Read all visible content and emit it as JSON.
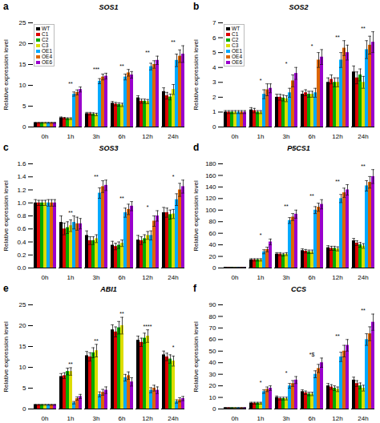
{
  "chart_data": [
    {
      "type": "bar",
      "title": "SOS1",
      "ylabel": "Relative expression level",
      "categories": [
        "0h",
        "1h",
        "3h",
        "6h",
        "12h",
        "24h"
      ],
      "ylim": [
        0,
        25
      ],
      "yticks": [
        0,
        5,
        10,
        15,
        20,
        25
      ],
      "series": [
        {
          "name": "WT",
          "color": "#000000",
          "values": [
            1.0,
            2.2,
            3.2,
            5.7,
            7.0,
            8.5
          ],
          "errors": [
            0.1,
            0.2,
            0.3,
            0.4,
            0.5,
            0.9
          ]
        },
        {
          "name": "C1",
          "color": "#dd0000",
          "values": [
            1.0,
            2.1,
            3.2,
            5.5,
            6.2,
            7.5
          ],
          "errors": [
            0.1,
            0.2,
            0.3,
            0.4,
            0.5,
            0.8
          ]
        },
        {
          "name": "C2",
          "color": "#00aa00",
          "values": [
            1.0,
            2.0,
            3.1,
            5.4,
            6.2,
            7.2
          ],
          "errors": [
            0.1,
            0.2,
            0.3,
            0.4,
            0.5,
            0.7
          ]
        },
        {
          "name": "C3",
          "color": "#dddd00",
          "values": [
            1.0,
            2.0,
            3.0,
            5.3,
            6.1,
            9.0
          ],
          "errors": [
            0.1,
            0.2,
            0.3,
            0.4,
            0.5,
            1.2
          ]
        },
        {
          "name": "OE1",
          "color": "#00aaff",
          "values": [
            1.0,
            7.9,
            11.0,
            12.0,
            14.5,
            16.0
          ],
          "errors": [
            0.1,
            0.5,
            0.6,
            0.7,
            0.8,
            1.5
          ]
        },
        {
          "name": "OE4",
          "color": "#dd6600",
          "values": [
            1.0,
            8.3,
            12.0,
            13.0,
            15.0,
            17.0
          ],
          "errors": [
            0.1,
            0.6,
            0.7,
            0.8,
            0.9,
            1.5
          ]
        },
        {
          "name": "OE6",
          "color": "#9900cc",
          "values": [
            1.0,
            9.0,
            12.2,
            12.5,
            16.0,
            17.5
          ],
          "errors": [
            0.1,
            0.6,
            0.7,
            0.8,
            1.0,
            2.0
          ]
        }
      ],
      "annotations": [
        {
          "text": "a"
        },
        {
          "text": "**",
          "x": "1h"
        },
        {
          "text": "***",
          "x": "3h"
        },
        {
          "text": "**",
          "x": "6h"
        },
        {
          "text": "**",
          "x": "12h"
        },
        {
          "text": "**",
          "x": "24h"
        }
      ],
      "legend": "upper left"
    },
    {
      "type": "bar",
      "title": "SOS2",
      "ylabel": "Relative expression level",
      "categories": [
        "0h",
        "1h",
        "3h",
        "6h",
        "12h",
        "24h"
      ],
      "ylim": [
        0,
        7
      ],
      "yticks": [
        0,
        1,
        2,
        3,
        4,
        5,
        6,
        7
      ],
      "series": [
        {
          "name": "WT",
          "color": "#000000",
          "values": [
            1.0,
            1.15,
            2.0,
            2.2,
            3.0,
            3.7
          ],
          "errors": [
            0.1,
            0.15,
            0.2,
            0.2,
            0.3,
            0.4
          ]
        },
        {
          "name": "C1",
          "color": "#dd0000",
          "values": [
            1.0,
            1.1,
            2.0,
            2.3,
            3.2,
            3.3
          ],
          "errors": [
            0.1,
            0.15,
            0.2,
            0.2,
            0.3,
            0.4
          ]
        },
        {
          "name": "C2",
          "color": "#00aa00",
          "values": [
            1.0,
            1.0,
            1.95,
            2.2,
            3.0,
            3.5
          ],
          "errors": [
            0.1,
            0.1,
            0.2,
            0.2,
            0.3,
            0.4
          ]
        },
        {
          "name": "C3",
          "color": "#dddd00",
          "values": [
            1.0,
            1.0,
            1.9,
            2.2,
            3.0,
            3.0
          ],
          "errors": [
            0.1,
            0.1,
            0.2,
            0.2,
            0.3,
            0.4
          ]
        },
        {
          "name": "OE1",
          "color": "#00aaff",
          "values": [
            1.0,
            2.2,
            2.3,
            2.3,
            4.5,
            5.2
          ],
          "errors": [
            0.1,
            0.3,
            0.3,
            0.3,
            0.5,
            0.6
          ]
        },
        {
          "name": "OE4",
          "color": "#dd6600",
          "values": [
            1.0,
            2.5,
            3.1,
            4.5,
            5.3,
            5.5
          ],
          "errors": [
            0.1,
            0.4,
            0.4,
            0.5,
            0.5,
            0.6
          ]
        },
        {
          "name": "OE6",
          "color": "#9900cc",
          "values": [
            1.0,
            2.6,
            3.6,
            4.7,
            5.0,
            5.7
          ],
          "errors": [
            0.1,
            0.3,
            0.4,
            0.5,
            0.5,
            0.7
          ]
        }
      ],
      "annotations": [
        {
          "text": "b"
        },
        {
          "text": "*",
          "x": "1h"
        },
        {
          "text": "*",
          "x": "3h"
        },
        {
          "text": "*",
          "x": "6h"
        },
        {
          "text": "**",
          "x": "12h"
        },
        {
          "text": "**",
          "x": "24h"
        }
      ],
      "legend": "upper left"
    },
    {
      "type": "bar",
      "title": "SOS3",
      "ylabel": "Relative expression level",
      "categories": [
        "0h",
        "1h",
        "3h",
        "6h",
        "12h",
        "24h"
      ],
      "ylim": [
        0,
        1.6
      ],
      "yticks": [
        {
          "value": 0,
          "label": "0.0"
        },
        0.2,
        0.4,
        0.6,
        0.8,
        {
          "value": 1.0,
          "label": "1.0"
        },
        1.2,
        1.4,
        1.6
      ],
      "series": [
        {
          "name": "WT",
          "color": "#000000",
          "values": [
            1.0,
            0.7,
            0.5,
            0.35,
            0.43,
            0.85
          ],
          "errors": [
            0.05,
            0.1,
            0.07,
            0.06,
            0.07,
            0.08
          ]
        },
        {
          "name": "C1",
          "color": "#dd0000",
          "values": [
            1.0,
            0.6,
            0.42,
            0.33,
            0.42,
            0.85
          ],
          "errors": [
            0.04,
            0.09,
            0.06,
            0.05,
            0.06,
            0.07
          ]
        },
        {
          "name": "C2",
          "color": "#00aa00",
          "values": [
            1.0,
            0.62,
            0.42,
            0.35,
            0.45,
            0.82
          ],
          "errors": [
            0.04,
            0.09,
            0.06,
            0.05,
            0.06,
            0.07
          ]
        },
        {
          "name": "C3",
          "color": "#dddd00",
          "values": [
            1.0,
            0.65,
            0.45,
            0.38,
            0.5,
            0.83
          ],
          "errors": [
            0.04,
            0.09,
            0.06,
            0.05,
            0.06,
            0.07
          ]
        },
        {
          "name": "OE1",
          "color": "#00aaff",
          "values": [
            1.0,
            0.7,
            1.15,
            0.85,
            0.5,
            1.05
          ],
          "errors": [
            0.05,
            0.1,
            0.08,
            0.07,
            0.07,
            0.09
          ]
        },
        {
          "name": "OE4",
          "color": "#dd6600",
          "values": [
            1.0,
            0.68,
            1.25,
            0.9,
            0.72,
            1.2
          ],
          "errors": [
            0.05,
            0.1,
            0.09,
            0.08,
            0.08,
            0.1
          ]
        },
        {
          "name": "OE6",
          "color": "#9900cc",
          "values": [
            1.0,
            0.68,
            1.27,
            0.95,
            0.8,
            1.25
          ],
          "errors": [
            0.05,
            0.08,
            0.08,
            0.07,
            0.08,
            0.1
          ]
        }
      ],
      "annotations": [
        {
          "text": "c"
        },
        {
          "text": "**",
          "x": "1h"
        },
        {
          "text": "**",
          "x": "3h"
        },
        {
          "text": "**",
          "x": "6h"
        },
        {
          "text": "*",
          "x": "12h"
        },
        {
          "text": "*",
          "x": "24h"
        }
      ],
      "legend": false
    },
    {
      "type": "bar",
      "title": "P5CS1",
      "ylabel": "Relative expression level",
      "categories": [
        "0h",
        "1h",
        "3h",
        "6h",
        "12h",
        "24h"
      ],
      "ylim": [
        0,
        180
      ],
      "yticks": [
        0,
        20,
        40,
        60,
        80,
        100,
        120,
        140,
        160,
        180
      ],
      "series": [
        {
          "name": "WT",
          "color": "#000000",
          "values": [
            1.0,
            14.0,
            24.0,
            30.0,
            35.0,
            47.0
          ],
          "errors": [
            0.2,
            2.0,
            2.5,
            3.0,
            3.5,
            4.0
          ]
        },
        {
          "name": "C1",
          "color": "#dd0000",
          "values": [
            1.0,
            14.0,
            24.0,
            29.0,
            34.0,
            43.0
          ],
          "errors": [
            0.2,
            2.0,
            2.5,
            3.0,
            3.5,
            4.0
          ]
        },
        {
          "name": "C2",
          "color": "#00aa00",
          "values": [
            1.0,
            14.0,
            23.0,
            28.0,
            34.0,
            40.0
          ],
          "errors": [
            0.2,
            2.0,
            2.5,
            3.0,
            3.5,
            4.0
          ]
        },
        {
          "name": "C3",
          "color": "#dddd00",
          "values": [
            1.0,
            14.0,
            24.0,
            28.0,
            33.0,
            38.0
          ],
          "errors": [
            0.2,
            2.0,
            2.5,
            3.0,
            3.5,
            4.0
          ]
        },
        {
          "name": "OE1",
          "color": "#00aaff",
          "values": [
            1.0,
            28.0,
            82.0,
            100.0,
            120.0,
            142.0
          ],
          "errors": [
            0.2,
            3.5,
            5.0,
            6.0,
            7.0,
            9.0
          ]
        },
        {
          "name": "OE4",
          "color": "#dd6600",
          "values": [
            1.0,
            32.0,
            88.0,
            105.0,
            130.0,
            148.0
          ],
          "errors": [
            0.2,
            4.0,
            6.0,
            7.0,
            8.0,
            10.0
          ]
        },
        {
          "name": "OE6",
          "color": "#9900cc",
          "values": [
            1.0,
            45.0,
            93.0,
            110.0,
            135.0,
            158.0
          ],
          "errors": [
            0.2,
            5.0,
            7.0,
            8.0,
            9.0,
            12.0
          ]
        }
      ],
      "annotations": [
        {
          "text": "d"
        },
        {
          "text": "*",
          "x": "1h"
        },
        {
          "text": "**",
          "x": "3h"
        },
        {
          "text": "**",
          "x": "6h"
        },
        {
          "text": "**",
          "x": "12h"
        },
        {
          "text": "**",
          "x": "24h"
        }
      ],
      "legend": false
    },
    {
      "type": "bar",
      "title": "ABI1",
      "ylabel": "Relative expression level",
      "categories": [
        "0h",
        "1h",
        "3h",
        "6h",
        "12h",
        "24h"
      ],
      "ylim": [
        0,
        25
      ],
      "yticks": [
        0,
        5,
        10,
        15,
        20,
        25
      ],
      "series": [
        {
          "name": "WT",
          "color": "#000000",
          "values": [
            1.0,
            7.8,
            12.8,
            19.0,
            16.5,
            13.0
          ],
          "errors": [
            0.1,
            0.7,
            1.0,
            1.2,
            1.0,
            0.9
          ]
        },
        {
          "name": "C1",
          "color": "#dd0000",
          "values": [
            1.0,
            8.0,
            12.5,
            18.5,
            16.0,
            12.5
          ],
          "errors": [
            0.1,
            0.7,
            1.0,
            1.2,
            1.0,
            0.9
          ]
        },
        {
          "name": "C2",
          "color": "#00aa00",
          "values": [
            1.0,
            9.0,
            13.5,
            19.5,
            17.0,
            12.0
          ],
          "errors": [
            0.1,
            0.8,
            1.2,
            1.5,
            1.2,
            1.0
          ]
        },
        {
          "name": "C3",
          "color": "#dddd00",
          "values": [
            1.0,
            9.0,
            14.0,
            20.0,
            17.5,
            11.5
          ],
          "errors": [
            0.1,
            0.9,
            1.5,
            2.0,
            1.5,
            1.2
          ]
        },
        {
          "name": "OE1",
          "color": "#00aaff",
          "values": [
            1.0,
            1.5,
            3.5,
            7.5,
            4.5,
            1.8
          ],
          "errors": [
            0.1,
            0.3,
            0.6,
            0.8,
            0.6,
            0.4
          ]
        },
        {
          "name": "OE4",
          "color": "#dd6600",
          "values": [
            1.0,
            2.5,
            4.0,
            8.0,
            5.0,
            2.2
          ],
          "errors": [
            0.1,
            0.4,
            0.7,
            0.9,
            0.7,
            0.5
          ]
        },
        {
          "name": "OE6",
          "color": "#9900cc",
          "values": [
            1.0,
            3.0,
            4.5,
            6.5,
            4.5,
            2.5
          ],
          "errors": [
            0.1,
            0.5,
            0.8,
            1.0,
            0.8,
            0.5
          ]
        }
      ],
      "annotations": [
        {
          "text": "e"
        },
        {
          "text": "**",
          "x": "1h"
        },
        {
          "text": "**",
          "x": "3h"
        },
        {
          "text": "**",
          "x": "6h"
        },
        {
          "text": "****",
          "x": "12h"
        },
        {
          "text": "*",
          "x": "24h"
        }
      ],
      "legend": false
    },
    {
      "type": "bar",
      "title": "CCS",
      "ylabel": "Relative expression level",
      "categories": [
        "0h",
        "1h",
        "3h",
        "6h",
        "12h",
        "24h"
      ],
      "ylim": [
        0,
        90
      ],
      "yticks": [
        0,
        10,
        20,
        30,
        40,
        50,
        60,
        70,
        80,
        90
      ],
      "series": [
        {
          "name": "WT",
          "color": "#000000",
          "values": [
            1.0,
            5.0,
            10.0,
            15.0,
            20.0,
            25.0
          ],
          "errors": [
            0.2,
            0.8,
            1.2,
            1.5,
            2.0,
            2.5
          ]
        },
        {
          "name": "C1",
          "color": "#dd0000",
          "values": [
            1.0,
            5.0,
            9.0,
            14.0,
            19.0,
            22.0
          ],
          "errors": [
            0.2,
            0.8,
            1.2,
            1.5,
            2.0,
            2.5
          ]
        },
        {
          "name": "C2",
          "color": "#00aa00",
          "values": [
            1.0,
            5.0,
            9.0,
            13.0,
            18.0,
            20.0
          ],
          "errors": [
            0.2,
            0.8,
            1.2,
            1.5,
            2.0,
            2.5
          ]
        },
        {
          "name": "C3",
          "color": "#dddd00",
          "values": [
            1.0,
            5.0,
            9.0,
            13.0,
            17.0,
            18.0
          ],
          "errors": [
            0.2,
            0.8,
            1.2,
            1.5,
            2.0,
            2.5
          ]
        },
        {
          "name": "OE1",
          "color": "#00aaff",
          "values": [
            1.0,
            15.0,
            20.0,
            30.0,
            45.0,
            60.0
          ],
          "errors": [
            0.2,
            1.5,
            2.0,
            3.0,
            4.0,
            5.0
          ]
        },
        {
          "name": "OE4",
          "color": "#dd6600",
          "values": [
            1.0,
            17.0,
            22.0,
            35.0,
            50.0,
            65.0
          ],
          "errors": [
            0.2,
            2.0,
            2.5,
            3.5,
            5.0,
            6.0
          ]
        },
        {
          "name": "OE6",
          "color": "#9900cc",
          "values": [
            1.0,
            18.0,
            25.0,
            40.0,
            55.0,
            75.0
          ],
          "errors": [
            0.2,
            2.0,
            3.0,
            4.0,
            5.0,
            7.0
          ]
        }
      ],
      "annotations": [
        {
          "text": "f"
        },
        {
          "text": "*",
          "x": "1h"
        },
        {
          "text": "*",
          "x": "3h"
        },
        {
          "text": "*$",
          "x": "6h"
        },
        {
          "text": "**",
          "x": "12h"
        },
        {
          "text": "**",
          "x": "24h"
        }
      ],
      "legend": false
    }
  ]
}
